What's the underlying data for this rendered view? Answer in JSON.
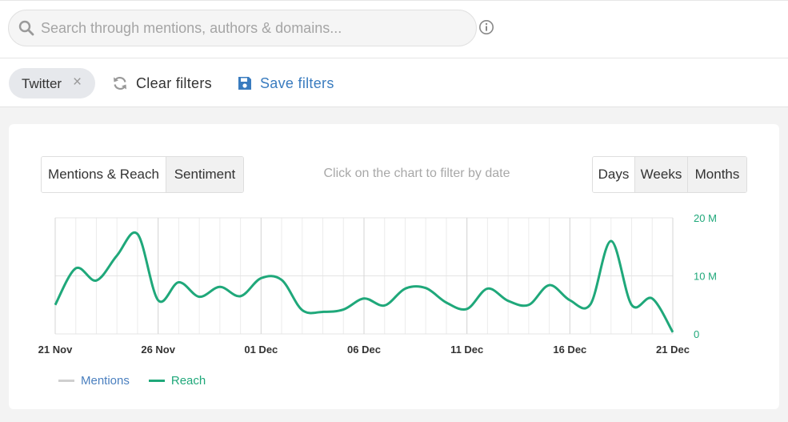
{
  "search": {
    "placeholder": "Search through mentions, authors & domains..."
  },
  "filters": {
    "chip_label": "Twitter",
    "chip_close_icon": "×",
    "clear_label": "Clear filters",
    "save_label": "Save filters"
  },
  "chart_panel": {
    "tabs": [
      {
        "label": "Mentions & Reach",
        "active": true
      },
      {
        "label": "Sentiment",
        "active": false
      }
    ],
    "hint": "Click on the chart to filter by date",
    "periods": [
      {
        "label": "Days",
        "active": true
      },
      {
        "label": "Weeks",
        "active": false
      },
      {
        "label": "Months",
        "active": false
      }
    ]
  },
  "colors": {
    "reach": "#1fa87a",
    "mentions": "#cfcfcf",
    "mentions_label": "#4a7fbf",
    "axis_label": "#1fa87a"
  },
  "icons": [
    "search-icon",
    "info-icon",
    "close-icon",
    "refresh-icon",
    "floppy-disk-icon"
  ],
  "chart_data": {
    "type": "line",
    "x_ticks": [
      "21 Nov",
      "26 Nov",
      "01 Dec",
      "06 Dec",
      "11 Dec",
      "16 Dec",
      "21 Dec"
    ],
    "y_ticks": [
      "0",
      "10 M",
      "20 M"
    ],
    "ylim": [
      0,
      20
    ],
    "grid": true,
    "legend": "bottom-left",
    "series": [
      {
        "name": "Mentions",
        "values": []
      },
      {
        "name": "Reach",
        "values": [
          5.0,
          11.3,
          9.2,
          13.5,
          17.2,
          5.8,
          8.9,
          6.4,
          8.1,
          6.5,
          9.6,
          9.3,
          4.1,
          3.8,
          4.2,
          6.1,
          4.9,
          7.8,
          7.9,
          5.4,
          4.3,
          7.8,
          5.7,
          5.0,
          8.4,
          5.8,
          5.1,
          16.0,
          5.0,
          6.1,
          0.3
        ]
      }
    ]
  }
}
